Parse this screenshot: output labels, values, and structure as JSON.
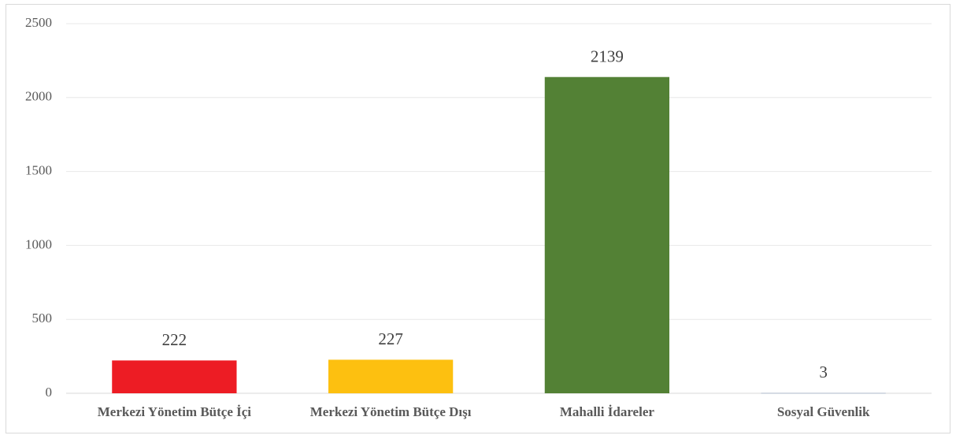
{
  "chart_data": {
    "type": "bar",
    "categories": [
      "Merkezi Yönetim Bütçe İçi",
      "Merkezi Yönetim Bütçe Dışı",
      "Mahalli İdareler",
      "Sosyal Güvenlik"
    ],
    "values": [
      222,
      227,
      2139,
      3
    ],
    "colors": [
      "#ed1c24",
      "#fdc010",
      "#538135",
      "#adb9ca"
    ],
    "ylim": [
      0,
      2500
    ],
    "yticks": [
      0,
      500,
      1000,
      1500,
      2000,
      2500
    ],
    "grid": true
  }
}
